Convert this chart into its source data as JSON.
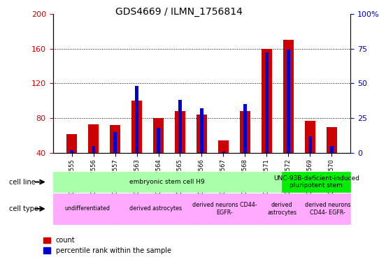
{
  "title": "GDS4669 / ILMN_1756814",
  "samples": [
    "GSM997555",
    "GSM997556",
    "GSM997557",
    "GSM997563",
    "GSM997564",
    "GSM997565",
    "GSM997566",
    "GSM997567",
    "GSM997568",
    "GSM997571",
    "GSM997572",
    "GSM997569",
    "GSM997570"
  ],
  "count_values": [
    62,
    73,
    72,
    100,
    80,
    88,
    84,
    55,
    88,
    160,
    170,
    77,
    70
  ],
  "percentile_values": [
    2,
    5,
    15,
    48,
    18,
    38,
    32,
    1,
    35,
    72,
    74,
    12,
    5
  ],
  "ylim_left": [
    40,
    200
  ],
  "ylim_right": [
    0,
    100
  ],
  "left_yticks": [
    40,
    80,
    120,
    160,
    200
  ],
  "right_yticks": [
    0,
    25,
    50,
    75,
    100
  ],
  "right_yticklabels": [
    "0",
    "25",
    "50",
    "75",
    "100%"
  ],
  "cell_line_groups": [
    {
      "label": "embryonic stem cell H9",
      "start": 0,
      "end": 10,
      "color": "#aaffaa"
    },
    {
      "label": "UNC-93B-deficient-induced\npluripotent stem",
      "start": 10,
      "end": 13,
      "color": "#00ee00"
    }
  ],
  "cell_type_groups": [
    {
      "label": "undifferentiated",
      "start": 0,
      "end": 3,
      "color": "#ffaaff"
    },
    {
      "label": "derived astrocytes",
      "start": 3,
      "end": 6,
      "color": "#ffaaff"
    },
    {
      "label": "derived neurons CD44-\nEGFR-",
      "start": 6,
      "end": 9,
      "color": "#ffaaff"
    },
    {
      "label": "derived\nastrocytes",
      "start": 9,
      "end": 11,
      "color": "#ffaaff"
    },
    {
      "label": "derived neurons\nCD44- EGFR-",
      "start": 11,
      "end": 13,
      "color": "#ffaaff"
    }
  ],
  "bar_color_red": "#CC0000",
  "bar_color_blue": "#0000CC",
  "tick_color_left": "#CC0000",
  "tick_color_right": "#0000BB"
}
